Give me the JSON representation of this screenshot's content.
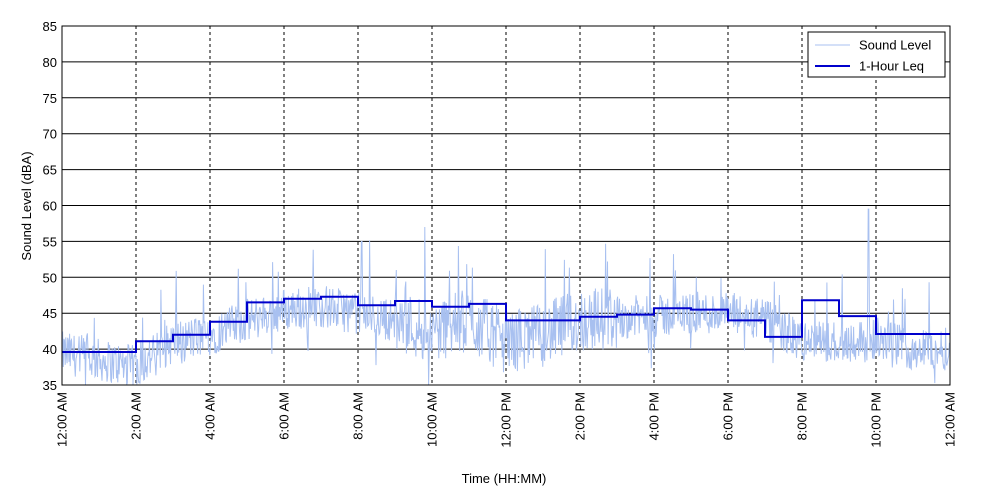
{
  "chart_data": {
    "type": "line",
    "title": "",
    "xlabel": "Time (HH:MM)",
    "ylabel": "Sound Level (dBA)",
    "ylim": [
      35,
      85
    ],
    "yticks": [
      35,
      40,
      45,
      50,
      55,
      60,
      65,
      70,
      75,
      80,
      85
    ],
    "xlim_hours": [
      0,
      24
    ],
    "xtick_labels": [
      "12:00 AM",
      "2:00 AM",
      "4:00 AM",
      "6:00 AM",
      "8:00 AM",
      "10:00 AM",
      "12:00 PM",
      "2:00 PM",
      "4:00 PM",
      "6:00 PM",
      "8:00 PM",
      "10:00 PM",
      "12:00 AM"
    ],
    "grid": "horizontal",
    "legend_position": "top-right",
    "series": [
      {
        "name": "Sound Level",
        "color": "#a8c0f0",
        "style": "thin noisy line",
        "hour_medians": [
          39.5,
          38.5,
          37.5,
          41,
          42,
          44,
          45.5,
          46,
          45,
          44,
          42.5,
          44,
          41,
          42,
          44,
          44.5,
          44.5,
          45,
          45,
          44,
          41,
          41,
          41.5,
          40
        ],
        "notable_peaks": [
          {
            "hour": 8.1,
            "value": 55
          },
          {
            "hour": 9.8,
            "value": 57
          },
          {
            "hour": 21.8,
            "value": 59.5
          }
        ]
      },
      {
        "name": "1-Hour Leq",
        "color": "#0000cc",
        "style": "step",
        "x_hours": [
          0,
          1,
          2,
          3,
          4,
          5,
          6,
          7,
          8,
          9,
          10,
          11,
          12,
          13,
          14,
          15,
          16,
          17,
          18,
          19,
          20,
          21,
          22,
          23
        ],
        "values": [
          39.6,
          39.6,
          41.1,
          42.0,
          43.8,
          46.5,
          47.0,
          47.3,
          46.1,
          46.7,
          45.9,
          46.3,
          44.0,
          44.0,
          44.5,
          44.8,
          45.7,
          45.5,
          44.0,
          41.7,
          46.8,
          44.6,
          42.1,
          42.1
        ]
      }
    ]
  }
}
